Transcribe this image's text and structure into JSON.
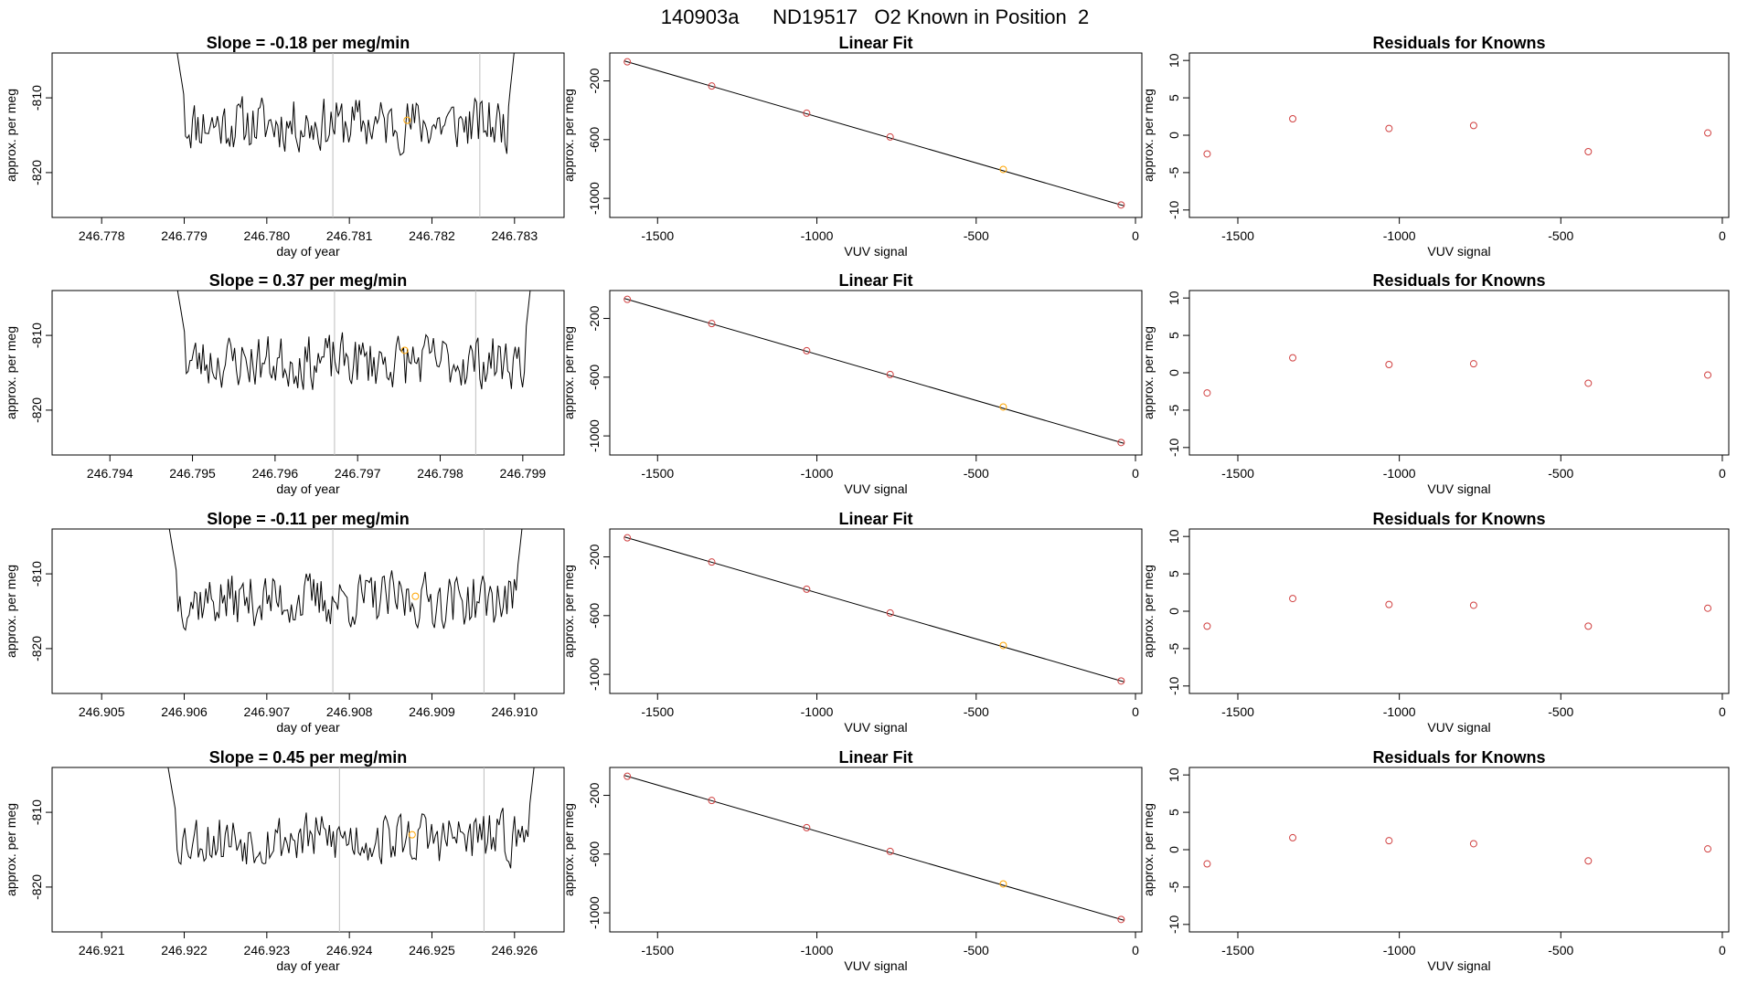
{
  "header": {
    "text": "140903a      ND19517   O2 Known in Position  2"
  },
  "colors": {
    "trace": "#000000",
    "marker_orange": "#ffa500",
    "marker_red": "#d04040",
    "vline": "#bebebe"
  },
  "chart_data": [
    {
      "type": "line",
      "title": "Slope =  -0.18  per meg/min",
      "xlabel": "day of year",
      "ylabel": "approx. per meg",
      "xlim": [
        246.7774,
        246.7836
      ],
      "ylim": [
        -826,
        -804
      ],
      "xticks": [
        "246.778",
        "246.779",
        "246.780",
        "246.781",
        "246.782",
        "246.783"
      ],
      "yticks": [
        "-810",
        "-820"
      ],
      "trace_start": 246.7788,
      "trace_end": 246.7831,
      "vlines": [
        246.7808,
        246.78258
      ],
      "orange_point": {
        "x": 246.7817,
        "y": -813
      },
      "seed": 11
    },
    {
      "type": "scatter",
      "title": "Linear Fit",
      "xlabel": "VUV signal",
      "ylabel": "approx. per meg",
      "xlim": [
        -1650,
        20
      ],
      "ylim": [
        -1130,
        -10
      ],
      "xticks": [
        "-1500",
        "-1000",
        "-500",
        "0"
      ],
      "yticks": [
        "-200",
        "-600",
        "-1000"
      ],
      "points": [
        [
          -1595,
          -70
        ],
        [
          -1330,
          -235
        ],
        [
          -1032,
          -420
        ],
        [
          -770,
          -582
        ],
        [
          -415,
          -803
        ],
        [
          -45,
          -1045
        ]
      ],
      "orange_index": 4
    },
    {
      "type": "scatter",
      "title": "Residuals for Knowns",
      "xlabel": "VUV signal",
      "ylabel": "approx. per meg",
      "xlim": [
        -1650,
        20
      ],
      "ylim": [
        -11,
        11
      ],
      "xticks": [
        "-1500",
        "-1000",
        "-500",
        "0"
      ],
      "yticks": [
        "10",
        "5",
        "0",
        "-5",
        "-10"
      ],
      "points": [
        [
          -1595,
          -2.5
        ],
        [
          -1330,
          2.2
        ],
        [
          -1032,
          0.9
        ],
        [
          -770,
          1.3
        ],
        [
          -415,
          -2.2
        ],
        [
          -45,
          0.3
        ]
      ]
    },
    {
      "type": "line",
      "title": "Slope =  0.37  per meg/min",
      "xlabel": "day of year",
      "ylabel": "approx. per meg",
      "xlim": [
        246.7933,
        246.7995
      ],
      "ylim": [
        -826,
        -804
      ],
      "xticks": [
        "246.794",
        "246.795",
        "246.796",
        "246.797",
        "246.798",
        "246.799"
      ],
      "yticks": [
        "-810",
        "-820"
      ],
      "trace_start": 246.7947,
      "trace_end": 246.7992,
      "vlines": [
        246.79672,
        246.79843
      ],
      "orange_point": {
        "x": 246.79757,
        "y": -812
      },
      "seed": 23
    },
    {
      "type": "scatter",
      "title": "Linear Fit",
      "xlabel": "VUV signal",
      "ylabel": "approx. per meg",
      "xlim": [
        -1650,
        20
      ],
      "ylim": [
        -1130,
        -10
      ],
      "xticks": [
        "-1500",
        "-1000",
        "-500",
        "0"
      ],
      "yticks": [
        "-200",
        "-600",
        "-1000"
      ],
      "points": [
        [
          -1595,
          -70
        ],
        [
          -1330,
          -235
        ],
        [
          -1032,
          -420
        ],
        [
          -770,
          -582
        ],
        [
          -415,
          -803
        ],
        [
          -45,
          -1045
        ]
      ],
      "orange_index": 4
    },
    {
      "type": "scatter",
      "title": "Residuals for Knowns",
      "xlabel": "VUV signal",
      "ylabel": "approx. per meg",
      "xlim": [
        -1650,
        20
      ],
      "ylim": [
        -11,
        11
      ],
      "xticks": [
        "-1500",
        "-1000",
        "-500",
        "0"
      ],
      "yticks": [
        "10",
        "5",
        "0",
        "-5",
        "-10"
      ],
      "points": [
        [
          -1595,
          -2.7
        ],
        [
          -1330,
          2.0
        ],
        [
          -1032,
          1.1
        ],
        [
          -770,
          1.2
        ],
        [
          -415,
          -1.4
        ],
        [
          -45,
          -0.3
        ]
      ]
    },
    {
      "type": "line",
      "title": "Slope =  -0.11  per meg/min",
      "xlabel": "day of year",
      "ylabel": "approx. per meg",
      "xlim": [
        246.9044,
        246.9106
      ],
      "ylim": [
        -826,
        -804
      ],
      "xticks": [
        "246.905",
        "246.906",
        "246.907",
        "246.908",
        "246.909",
        "246.910"
      ],
      "yticks": [
        "-810",
        "-820"
      ],
      "trace_start": 246.9057,
      "trace_end": 246.9102,
      "vlines": [
        246.9078,
        246.90963
      ],
      "orange_point": {
        "x": 246.9088,
        "y": -813
      },
      "seed": 37
    },
    {
      "type": "scatter",
      "title": "Linear Fit",
      "xlabel": "VUV signal",
      "ylabel": "approx. per meg",
      "xlim": [
        -1650,
        20
      ],
      "ylim": [
        -1130,
        -10
      ],
      "xticks": [
        "-1500",
        "-1000",
        "-500",
        "0"
      ],
      "yticks": [
        "-200",
        "-600",
        "-1000"
      ],
      "points": [
        [
          -1595,
          -70
        ],
        [
          -1330,
          -235
        ],
        [
          -1032,
          -420
        ],
        [
          -770,
          -582
        ],
        [
          -415,
          -803
        ],
        [
          -45,
          -1045
        ]
      ],
      "orange_index": 4
    },
    {
      "type": "scatter",
      "title": "Residuals for Knowns",
      "xlabel": "VUV signal",
      "ylabel": "approx. per meg",
      "xlim": [
        -1650,
        20
      ],
      "ylim": [
        -11,
        11
      ],
      "xticks": [
        "-1500",
        "-1000",
        "-500",
        "0"
      ],
      "yticks": [
        "10",
        "5",
        "0",
        "-5",
        "-10"
      ],
      "points": [
        [
          -1595,
          -2.0
        ],
        [
          -1330,
          1.7
        ],
        [
          -1032,
          0.9
        ],
        [
          -770,
          0.8
        ],
        [
          -415,
          -2.0
        ],
        [
          -45,
          0.4
        ]
      ]
    },
    {
      "type": "line",
      "title": "Slope =  0.45  per meg/min",
      "xlabel": "day of year",
      "ylabel": "approx. per meg",
      "xlim": [
        246.9204,
        246.9266
      ],
      "ylim": [
        -826,
        -804
      ],
      "xticks": [
        "246.921",
        "246.922",
        "246.923",
        "246.924",
        "246.925",
        "246.926"
      ],
      "yticks": [
        "-810",
        "-820"
      ],
      "trace_start": 246.92168,
      "trace_end": 246.92635,
      "vlines": [
        246.92388,
        246.92563
      ],
      "orange_point": {
        "x": 246.92476,
        "y": -813
      },
      "seed": 53
    },
    {
      "type": "scatter",
      "title": "Linear Fit",
      "xlabel": "VUV signal",
      "ylabel": "approx. per meg",
      "xlim": [
        -1650,
        20
      ],
      "ylim": [
        -1130,
        -10
      ],
      "xticks": [
        "-1500",
        "-1000",
        "-500",
        "0"
      ],
      "yticks": [
        "-200",
        "-600",
        "-1000"
      ],
      "points": [
        [
          -1595,
          -70
        ],
        [
          -1330,
          -235
        ],
        [
          -1032,
          -420
        ],
        [
          -770,
          -582
        ],
        [
          -415,
          -803
        ],
        [
          -45,
          -1045
        ]
      ],
      "orange_index": 4
    },
    {
      "type": "scatter",
      "title": "Residuals for Knowns",
      "xlabel": "VUV signal",
      "ylabel": "approx. per meg",
      "xlim": [
        -1650,
        20
      ],
      "ylim": [
        -11,
        11
      ],
      "xticks": [
        "-1500",
        "-1000",
        "-500",
        "0"
      ],
      "yticks": [
        "10",
        "5",
        "0",
        "-5",
        "-10"
      ],
      "points": [
        [
          -1595,
          -1.9
        ],
        [
          -1330,
          1.6
        ],
        [
          -1032,
          1.2
        ],
        [
          -770,
          0.8
        ],
        [
          -415,
          -1.5
        ],
        [
          -45,
          0.1
        ]
      ]
    }
  ]
}
